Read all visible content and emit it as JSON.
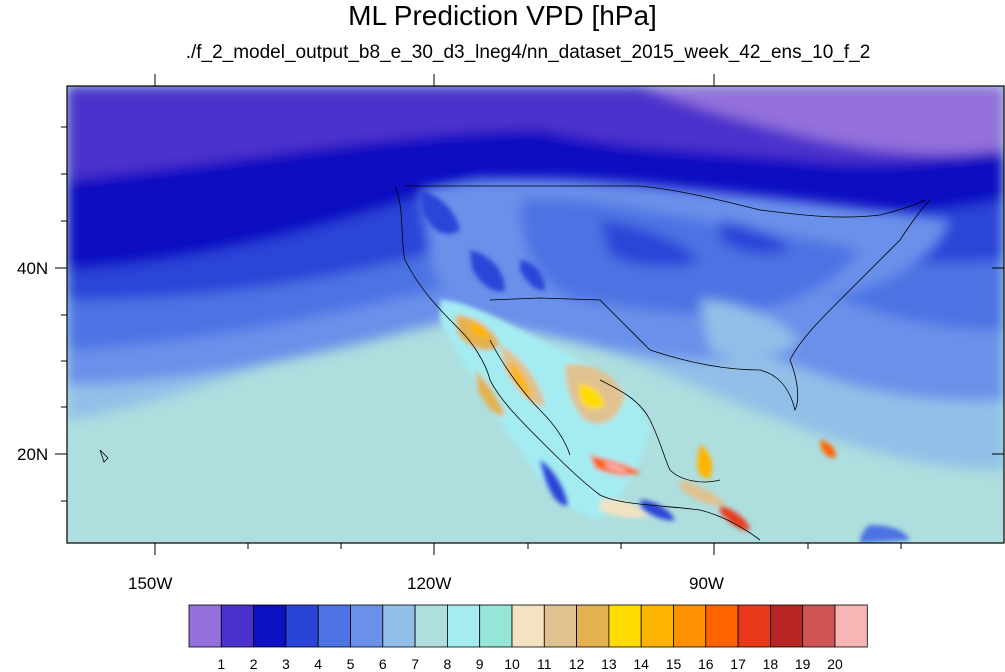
{
  "title": "ML Prediction VPD [hPa]",
  "subtitle": "./f_2_model_output_b8_e_30_d3_lneg4/nn_dataset_2015_week_42_ens_10_f_2",
  "axes": {
    "lon_ticks": [
      "150W",
      "120W",
      "90W"
    ],
    "lat_ticks": [
      "40N",
      "20N"
    ]
  },
  "colorbar": {
    "labels": [
      "1",
      "2",
      "3",
      "4",
      "5",
      "6",
      "7",
      "8",
      "9",
      "10",
      "11",
      "12",
      "13",
      "14",
      "15",
      "16",
      "17",
      "18",
      "19",
      "20"
    ],
    "colors": [
      "#9370db",
      "#4b30cc",
      "#0d11c2",
      "#2b44d8",
      "#4b73e3",
      "#6b90ea",
      "#92bfe8",
      "#aedede",
      "#a4ecf2",
      "#96e6d8",
      "#f3e3c3",
      "#dfc290",
      "#e3b24f",
      "#ffdb00",
      "#ffb400",
      "#ff9000",
      "#ff6400",
      "#e83a1a",
      "#b62522",
      "#cf5555",
      "#f7b5b5"
    ]
  }
}
